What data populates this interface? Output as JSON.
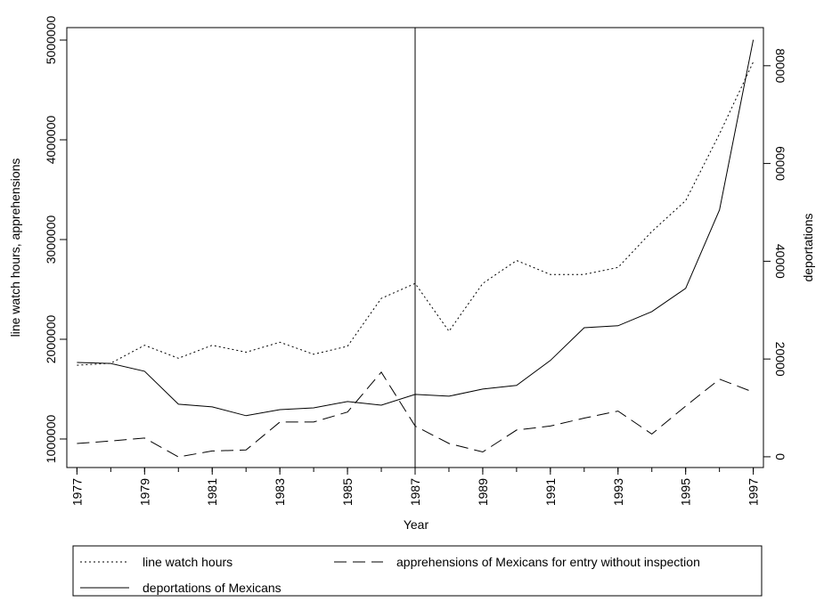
{
  "chart_data": {
    "type": "line",
    "x": [
      1977,
      1978,
      1979,
      1980,
      1981,
      1982,
      1983,
      1984,
      1985,
      1986,
      1987,
      1988,
      1989,
      1990,
      1991,
      1992,
      1993,
      1994,
      1995,
      1996,
      1997
    ],
    "xlim": [
      1976.7,
      1997.3
    ],
    "xticks": [
      1977,
      1979,
      1981,
      1983,
      1985,
      1987,
      1989,
      1991,
      1993,
      1995,
      1997
    ],
    "xlabel": "Year",
    "ylabel": "line watch hours, apprehensions",
    "y2label": "deportations",
    "ylim": [
      714000,
      5125000
    ],
    "yticks": [
      1000000,
      2000000,
      3000000,
      4000000,
      5000000
    ],
    "y2lim": [
      -2200,
      87800
    ],
    "y2ticks": [
      0,
      20000,
      40000,
      60000,
      80000
    ],
    "vline": 1987,
    "series": [
      {
        "name": "line watch hours",
        "color": "#000000",
        "dash": "dotted",
        "values": [
          1740000,
          1760000,
          1940000,
          1810000,
          1940000,
          1870000,
          1970000,
          1850000,
          1930000,
          2410000,
          2560000,
          2080000,
          2560000,
          2790000,
          2650000,
          2650000,
          2720000,
          3080000,
          3390000,
          4060000,
          4780000
        ]
      },
      {
        "name": "apprehensions of Mexicans for entry without inspection",
        "color": "#000000",
        "dash": "dashed",
        "values": [
          955000,
          980000,
          1010000,
          820000,
          880000,
          890000,
          1170000,
          1170000,
          1270000,
          1670000,
          1130000,
          955000,
          870000,
          1090000,
          1130000,
          1210000,
          1280000,
          1050000,
          1330000,
          1600000,
          1470000
        ]
      },
      {
        "name": "deportations of Mexicans",
        "color": "#000000",
        "dash": "solid",
        "axis": "y2",
        "values": [
          19300,
          19100,
          17500,
          10750,
          10200,
          8400,
          9650,
          10000,
          11300,
          10550,
          12750,
          12400,
          13850,
          14600,
          19700,
          26400,
          26800,
          29700,
          34450,
          50500,
          85300
        ]
      }
    ]
  }
}
